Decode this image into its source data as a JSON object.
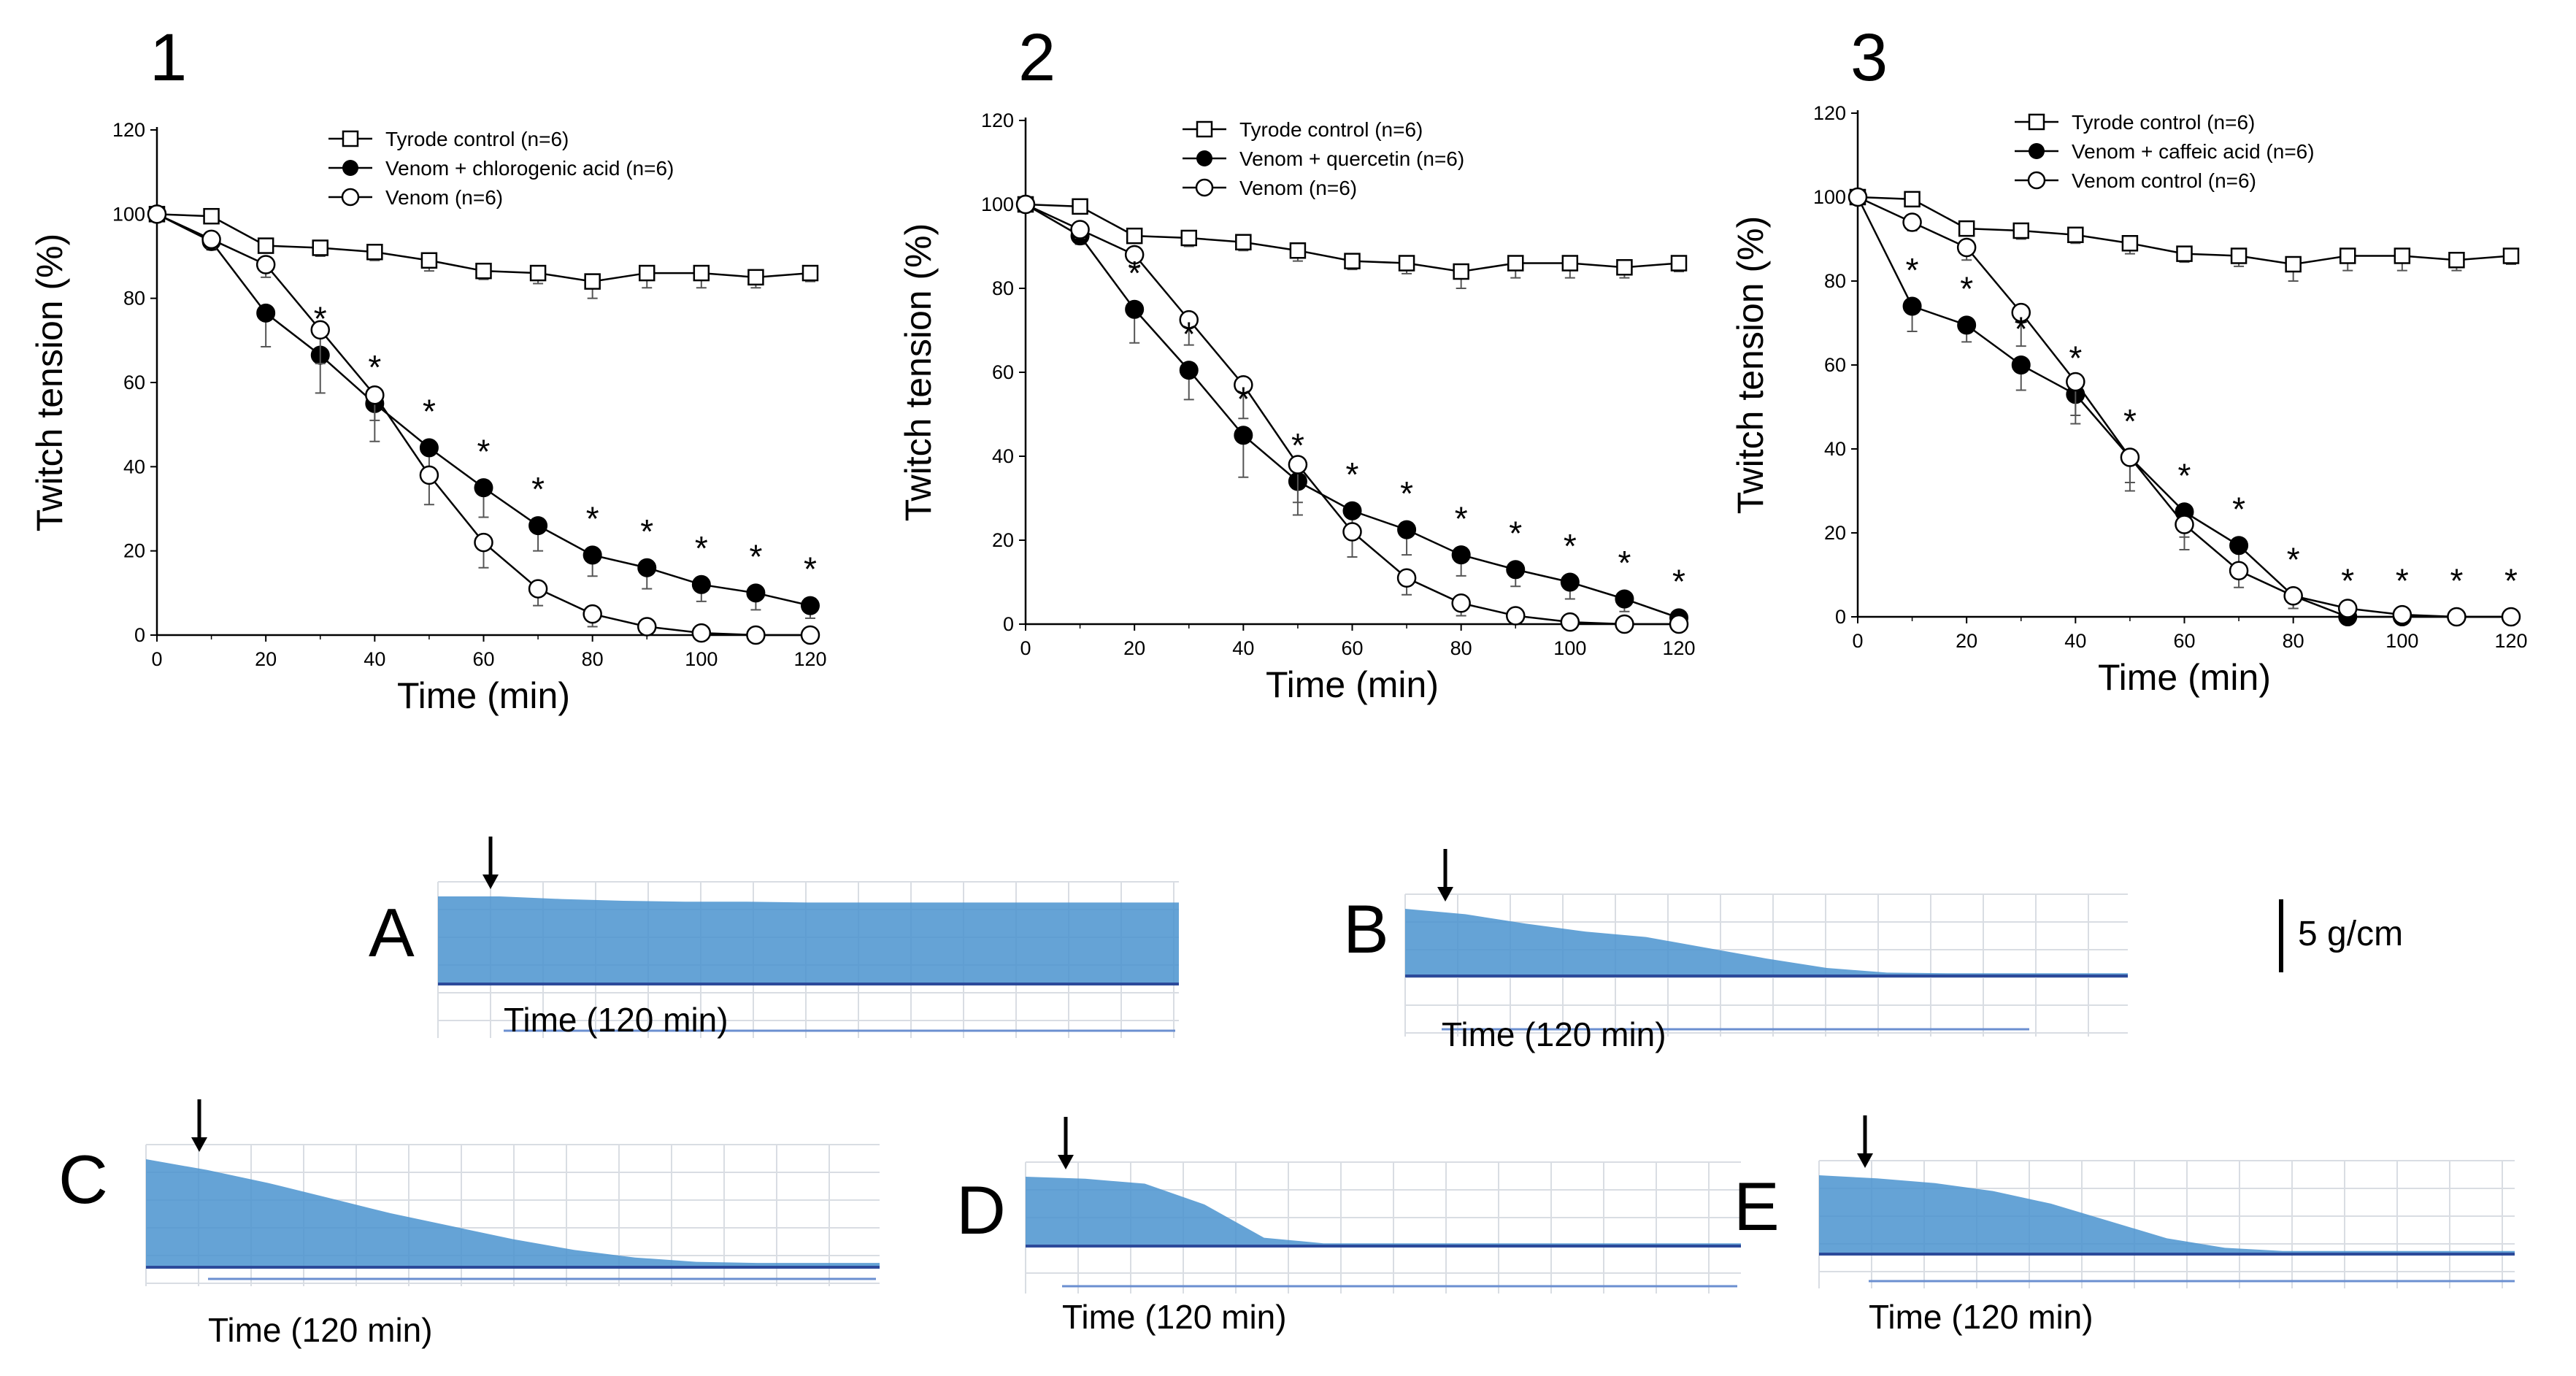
{
  "chart_data": [
    {
      "type": "line",
      "panel_number": "1",
      "xlabel": "Time (min)",
      "ylabel": "Twitch  tension (%)",
      "xlim": [
        0,
        120
      ],
      "ylim": [
        0,
        120
      ],
      "x_ticks": [
        0,
        20,
        40,
        60,
        80,
        100,
        120
      ],
      "y_ticks": [
        0,
        20,
        40,
        60,
        80,
        100,
        120
      ],
      "x": [
        0,
        10,
        20,
        30,
        40,
        50,
        60,
        70,
        80,
        90,
        100,
        110,
        120
      ],
      "series": [
        {
          "name": "Tyrode control  (n=6)",
          "marker": "open-square",
          "values": [
            100,
            99.5,
            92.5,
            92,
            91,
            89,
            86.5,
            86,
            84,
            86,
            86,
            85,
            86
          ],
          "errors": [
            0,
            1,
            1.5,
            2,
            2,
            2.5,
            2,
            2.5,
            4,
            3.5,
            3.5,
            2.5,
            2
          ]
        },
        {
          "name": "Venom + chlorogenic acid (n=6)",
          "marker": "filled-circle",
          "values": [
            100,
            93.5,
            76.5,
            66.5,
            55,
            44.5,
            35,
            26,
            19,
            16,
            12,
            10,
            7
          ],
          "errors": [
            0,
            2,
            8,
            9,
            9,
            7,
            7,
            6,
            5,
            5,
            4,
            4,
            3
          ]
        },
        {
          "name": "Venom (n=6)",
          "marker": "open-circle",
          "values": [
            100,
            94,
            88,
            72.5,
            57,
            38,
            22,
            11,
            5,
            2,
            0.5,
            0,
            0
          ],
          "errors": [
            0,
            2,
            3,
            8,
            6,
            7,
            6,
            4,
            3,
            1,
            1,
            0,
            0
          ]
        }
      ],
      "significance": {
        "marker": "*",
        "x": [
          30,
          40,
          50,
          60,
          70,
          80,
          90,
          100,
          110,
          120
        ]
      }
    },
    {
      "type": "line",
      "panel_number": "2",
      "xlabel": "Time (min)",
      "ylabel": "Twitch  tension (%)",
      "xlim": [
        0,
        120
      ],
      "ylim": [
        0,
        120
      ],
      "x_ticks": [
        0,
        20,
        40,
        60,
        80,
        100,
        120
      ],
      "y_ticks": [
        0,
        20,
        40,
        60,
        80,
        100,
        120
      ],
      "x": [
        0,
        10,
        20,
        30,
        40,
        50,
        60,
        70,
        80,
        90,
        100,
        110,
        120
      ],
      "series": [
        {
          "name": "Tyrode control (n=6)",
          "marker": "open-square",
          "values": [
            100,
            99.5,
            92.5,
            92,
            91,
            89,
            86.5,
            86,
            84,
            86,
            86,
            85,
            86
          ],
          "errors": [
            0,
            1,
            1.5,
            2,
            2,
            2.5,
            2,
            2.5,
            4,
            3.5,
            3.5,
            2.5,
            2
          ]
        },
        {
          "name": "Venom + quercetin (n=6)",
          "marker": "filled-circle",
          "values": [
            100,
            92.5,
            75,
            60.5,
            45,
            34,
            27,
            22.5,
            16.5,
            13,
            10,
            6,
            1.5
          ],
          "errors": [
            0,
            2,
            8,
            7,
            10,
            8,
            6,
            6,
            5,
            4,
            4,
            3,
            1
          ]
        },
        {
          "name": "Venom  (n=6)",
          "marker": "open-circle",
          "values": [
            100,
            94,
            88,
            72.5,
            57,
            38,
            22,
            11,
            5,
            2,
            0.5,
            0,
            0
          ],
          "errors": [
            0,
            2,
            3,
            6,
            8,
            9,
            6,
            4,
            3,
            1,
            1,
            0,
            0
          ]
        }
      ],
      "significance": {
        "marker": "*",
        "x": [
          20,
          30,
          40,
          50,
          60,
          70,
          80,
          90,
          100,
          110,
          120
        ]
      }
    },
    {
      "type": "line",
      "panel_number": "3",
      "xlabel": "Time (min)",
      "ylabel": "Twitch  tension (%)",
      "xlim": [
        0,
        120
      ],
      "ylim": [
        0,
        120
      ],
      "x_ticks": [
        0,
        20,
        40,
        60,
        80,
        100,
        120
      ],
      "y_ticks": [
        0,
        20,
        40,
        60,
        80,
        100,
        120
      ],
      "x": [
        0,
        10,
        20,
        30,
        40,
        50,
        60,
        70,
        80,
        90,
        100,
        110,
        120
      ],
      "series": [
        {
          "name": "Tyrode control (n=6)",
          "marker": "open-square",
          "values": [
            100,
            99.5,
            92.5,
            92,
            91,
            89,
            86.5,
            86,
            84,
            86,
            86,
            85,
            86
          ],
          "errors": [
            0,
            1,
            1.5,
            2,
            2,
            2.5,
            2,
            2.5,
            4,
            3.5,
            3.5,
            2.5,
            2
          ]
        },
        {
          "name": "Venom + caffeic acid (n=6)",
          "marker": "filled-circle",
          "values": [
            100,
            74,
            69.5,
            60,
            53,
            38,
            25,
            17,
            5,
            0,
            0,
            0,
            0
          ],
          "errors": [
            0,
            6,
            4,
            6,
            7,
            6,
            6,
            5,
            3,
            1,
            0,
            0,
            0
          ]
        },
        {
          "name": "Venom control (n=6)",
          "marker": "open-circle",
          "values": [
            100,
            94,
            88,
            72.5,
            56,
            38,
            22,
            11,
            5,
            2,
            0.5,
            0,
            0
          ],
          "errors": [
            0,
            2,
            3,
            8,
            8,
            8,
            6,
            4,
            3,
            1,
            1,
            0,
            0
          ]
        }
      ],
      "significance": {
        "marker": "*",
        "x": [
          10,
          20,
          30,
          40,
          50,
          60,
          70,
          80,
          90,
          100,
          110,
          120
        ]
      }
    }
  ],
  "traces": {
    "time_label": "Time (120 min)",
    "scale_label": "5 g/cm",
    "trace_color": "#4a93cf",
    "panels": [
      {
        "letter": "A",
        "profile": [
          1,
          1,
          0.97,
          0.95,
          0.94,
          0.94,
          0.93,
          0.93,
          0.93,
          0.93,
          0.93,
          0.93,
          0.93
        ]
      },
      {
        "letter": "B",
        "profile": [
          1,
          0.92,
          0.78,
          0.66,
          0.58,
          0.42,
          0.26,
          0.12,
          0.05,
          0.02,
          0.01,
          0,
          0
        ]
      },
      {
        "letter": "C",
        "profile": [
          1,
          0.9,
          0.78,
          0.64,
          0.5,
          0.38,
          0.26,
          0.16,
          0.09,
          0.05,
          0.02,
          0.01,
          0
        ]
      },
      {
        "letter": "D",
        "profile": [
          1,
          0.97,
          0.9,
          0.6,
          0.12,
          0.02,
          0,
          0,
          0,
          0,
          0,
          0,
          0
        ]
      },
      {
        "letter": "E",
        "profile": [
          1,
          0.96,
          0.9,
          0.8,
          0.64,
          0.42,
          0.2,
          0.08,
          0.03,
          0.01,
          0,
          0,
          0
        ]
      }
    ]
  },
  "colors": {
    "ink": "#000000",
    "errorbar": "#555555",
    "trace_line": "#2c4a9a",
    "baseline": "#6b8fd0",
    "grid": "#d9dde3"
  }
}
